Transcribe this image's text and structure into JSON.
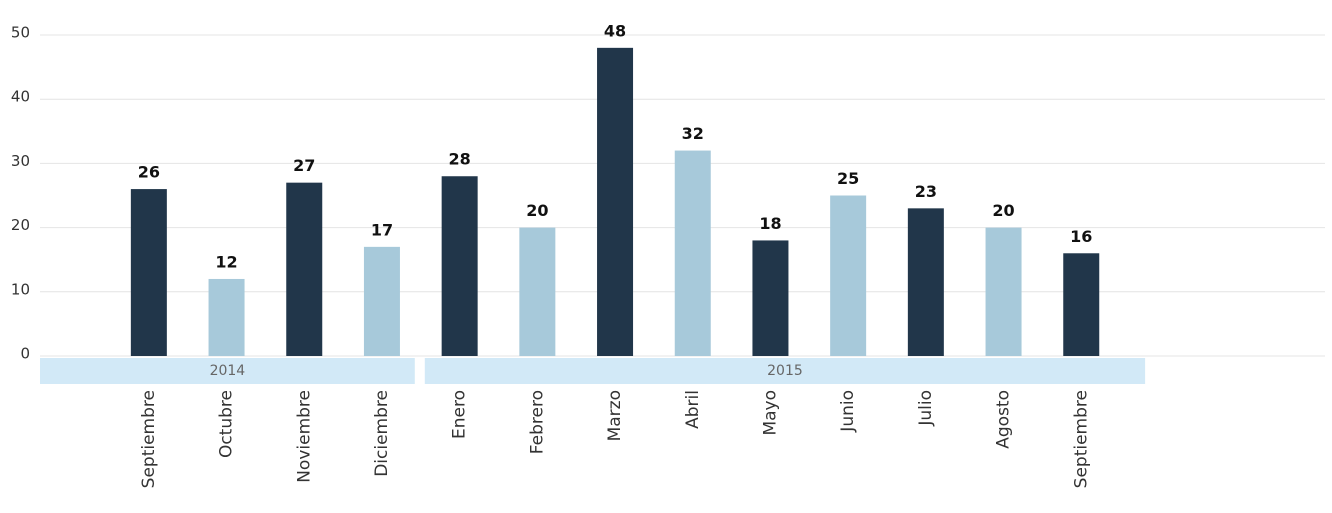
{
  "chart_data": {
    "type": "bar",
    "categories": [
      "Septiembre",
      "Octubre",
      "Noviembre",
      "Diciembre",
      "Enero",
      "Febrero",
      "Marzo",
      "Abril",
      "Mayo",
      "Junio",
      "Julio",
      "Agosto",
      "Septiembre"
    ],
    "values": [
      26,
      12,
      27,
      17,
      28,
      20,
      48,
      32,
      18,
      25,
      23,
      20,
      16
    ],
    "colors": [
      "#21364a",
      "#a7c9da",
      "#21364a",
      "#a7c9da",
      "#21364a",
      "#a7c9da",
      "#21364a",
      "#a7c9da",
      "#21364a",
      "#a7c9da",
      "#21364a",
      "#a7c9da",
      "#21364a"
    ],
    "groups": [
      {
        "name": "2014",
        "count": 4
      },
      {
        "name": "2015",
        "count": 9
      }
    ],
    "ylim": [
      0,
      50
    ],
    "yticks": [
      0,
      10,
      20,
      30,
      40,
      50
    ],
    "grid": true
  }
}
